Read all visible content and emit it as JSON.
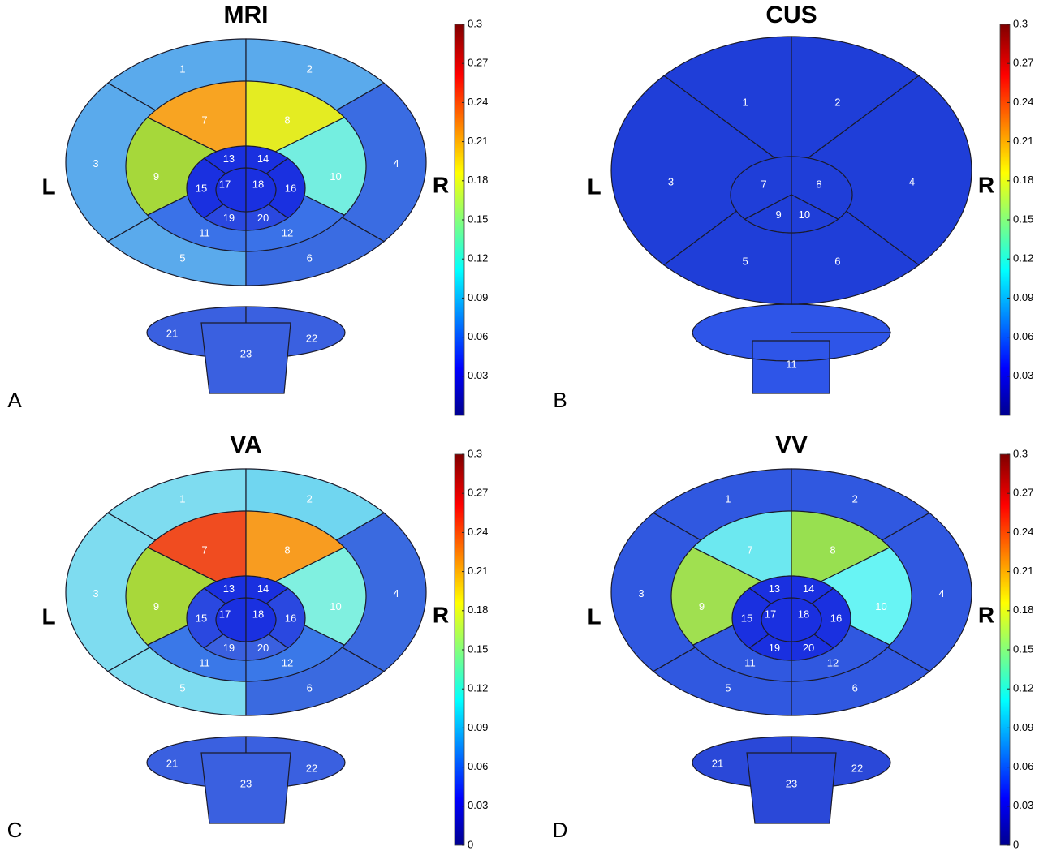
{
  "panels": [
    {
      "title": "MRI",
      "letter": "A",
      "left": "L",
      "right": "R",
      "regions": [
        {
          "label": "1",
          "color": "#5aaaec"
        },
        {
          "label": "2",
          "color": "#5aaaec"
        },
        {
          "label": "3",
          "color": "#5aaaec"
        },
        {
          "label": "4",
          "color": "#3a6ce2"
        },
        {
          "label": "5",
          "color": "#5aaaec"
        },
        {
          "label": "6",
          "color": "#3a6ce2"
        },
        {
          "label": "7",
          "color": "#f8a422"
        },
        {
          "label": "8",
          "color": "#e4ec22"
        },
        {
          "label": "9",
          "color": "#a6d83a"
        },
        {
          "label": "10",
          "color": "#74eee0"
        },
        {
          "label": "11",
          "color": "#3a72e8"
        },
        {
          "label": "12",
          "color": "#3a72e8"
        },
        {
          "label": "13",
          "color": "#1a30e0"
        },
        {
          "label": "14",
          "color": "#1a30e0"
        },
        {
          "label": "15",
          "color": "#1a30e0"
        },
        {
          "label": "16",
          "color": "#1a30e0"
        },
        {
          "label": "17",
          "color": "#1a30e0"
        },
        {
          "label": "18",
          "color": "#1a30e0"
        },
        {
          "label": "19",
          "color": "#2a48e0"
        },
        {
          "label": "20",
          "color": "#2a48e0"
        },
        {
          "label": "21",
          "color": "#3a60e0"
        },
        {
          "label": "22",
          "color": "#3a60e0"
        },
        {
          "label": "23",
          "color": "#3a60e0"
        }
      ],
      "colorbar": {
        "range": [
          0,
          0.3
        ],
        "ticks": [
          0.03,
          0.06,
          0.09,
          0.12,
          0.15,
          0.18,
          0.21,
          0.24,
          0.27,
          0.3
        ]
      }
    },
    {
      "title": "CUS",
      "letter": "B",
      "left": "L",
      "right": "R",
      "regions": [
        {
          "label": "1",
          "color": "#1f3ed8"
        },
        {
          "label": "2",
          "color": "#1f3ed8"
        },
        {
          "label": "3",
          "color": "#1f3ed8"
        },
        {
          "label": "4",
          "color": "#1f3ed8"
        },
        {
          "label": "5",
          "color": "#1f3ed8"
        },
        {
          "label": "6",
          "color": "#1f3ed8"
        },
        {
          "label": "7",
          "color": "#1f3ed8"
        },
        {
          "label": "8",
          "color": "#1f3ed8"
        },
        {
          "label": "9",
          "color": "#1f3ed8"
        },
        {
          "label": "10",
          "color": "#1f3ed8"
        },
        {
          "label": "11",
          "color": "#2e55e8"
        }
      ],
      "colorbar": {
        "range": [
          0,
          0.3
        ],
        "ticks": [
          0.03,
          0.06,
          0.09,
          0.12,
          0.15,
          0.18,
          0.21,
          0.24,
          0.27,
          0.3
        ]
      }
    },
    {
      "title": "VA",
      "letter": "C",
      "left": "L",
      "right": "R",
      "regions": [
        {
          "label": "1",
          "color": "#7edcf0"
        },
        {
          "label": "2",
          "color": "#70d6f0"
        },
        {
          "label": "3",
          "color": "#7edcf0"
        },
        {
          "label": "4",
          "color": "#3a6ae0"
        },
        {
          "label": "5",
          "color": "#7edcf0"
        },
        {
          "label": "6",
          "color": "#3a6ae0"
        },
        {
          "label": "7",
          "color": "#f04c20"
        },
        {
          "label": "8",
          "color": "#f89c20"
        },
        {
          "label": "9",
          "color": "#a8d83a"
        },
        {
          "label": "10",
          "color": "#80f0e0"
        },
        {
          "label": "11",
          "color": "#3a78e8"
        },
        {
          "label": "12",
          "color": "#3a78e8"
        },
        {
          "label": "13",
          "color": "#1a30e0"
        },
        {
          "label": "14",
          "color": "#1a30e0"
        },
        {
          "label": "15",
          "color": "#2a48e0"
        },
        {
          "label": "16",
          "color": "#2a48e0"
        },
        {
          "label": "17",
          "color": "#1a30e0"
        },
        {
          "label": "18",
          "color": "#1a30e0"
        },
        {
          "label": "19",
          "color": "#3a60e0"
        },
        {
          "label": "20",
          "color": "#3a60e0"
        },
        {
          "label": "21",
          "color": "#3a60e0"
        },
        {
          "label": "22",
          "color": "#3a60e0"
        },
        {
          "label": "23",
          "color": "#3a60e0"
        }
      ],
      "colorbar": {
        "range": [
          0,
          0.3
        ],
        "ticks": [
          0,
          0.03,
          0.06,
          0.09,
          0.12,
          0.15,
          0.18,
          0.21,
          0.24,
          0.27,
          0.3
        ]
      }
    },
    {
      "title": "VV",
      "letter": "D",
      "left": "L",
      "right": "R",
      "regions": [
        {
          "label": "1",
          "color": "#3058e0"
        },
        {
          "label": "2",
          "color": "#3058e0"
        },
        {
          "label": "3",
          "color": "#3058e0"
        },
        {
          "label": "4",
          "color": "#3058e0"
        },
        {
          "label": "5",
          "color": "#3058e0"
        },
        {
          "label": "6",
          "color": "#3058e0"
        },
        {
          "label": "7",
          "color": "#6ce8f0"
        },
        {
          "label": "8",
          "color": "#98e050"
        },
        {
          "label": "9",
          "color": "#a0e050"
        },
        {
          "label": "10",
          "color": "#68f4f4"
        },
        {
          "label": "11",
          "color": "#3058e0"
        },
        {
          "label": "12",
          "color": "#3058e0"
        },
        {
          "label": "13",
          "color": "#1a30e0"
        },
        {
          "label": "14",
          "color": "#1a30e0"
        },
        {
          "label": "15",
          "color": "#1a30e0"
        },
        {
          "label": "16",
          "color": "#1a30e0"
        },
        {
          "label": "17",
          "color": "#1a30e0"
        },
        {
          "label": "18",
          "color": "#1a30e0"
        },
        {
          "label": "19",
          "color": "#1a30e0"
        },
        {
          "label": "20",
          "color": "#1a30e0"
        },
        {
          "label": "21",
          "color": "#2a48d8"
        },
        {
          "label": "22",
          "color": "#2a48d8"
        },
        {
          "label": "23",
          "color": "#2a48d8"
        }
      ],
      "colorbar": {
        "range": [
          0,
          0.3
        ],
        "ticks": [
          0,
          0.03,
          0.06,
          0.09,
          0.12,
          0.15,
          0.18,
          0.21,
          0.24,
          0.27,
          0.3
        ]
      }
    }
  ]
}
